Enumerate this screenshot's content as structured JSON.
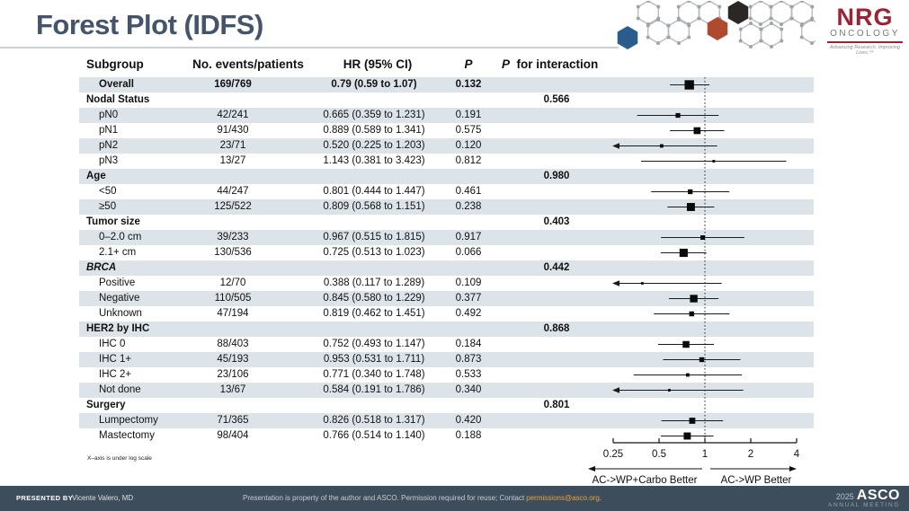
{
  "title": "Forest Plot (IDFS)",
  "nrg_logo": {
    "name": "NRG",
    "division": "ONCOLOGY",
    "tagline": "Advancing Research. Improving Lives.™",
    "brand_red": "#9d2235",
    "honeycomb_colors": {
      "blue": "#2a5d8c",
      "red": "#b04a2f",
      "dark": "#2b2724",
      "gray": "#b4b9bd"
    }
  },
  "table": {
    "columns": {
      "subgroup": "Subgroup",
      "events": "No. events/patients",
      "hr": "HR (95% CI)",
      "p": "P",
      "p_interaction_prefix": "P",
      "p_interaction_suffix": "for interaction"
    }
  },
  "chart_data": {
    "type": "forest",
    "x_scale": "log",
    "xlim": [
      0.25,
      4
    ],
    "reference_line": 1,
    "axis_ticks": [
      0.25,
      0.5,
      1,
      2,
      4
    ],
    "axis_tick_labels": [
      "0.25",
      "0.5",
      "1",
      "2",
      "4"
    ],
    "rows": [
      {
        "label": "Overall",
        "type": "data",
        "bold": true,
        "events": "169/769",
        "hr": 0.79,
        "lo": 0.59,
        "hi": 1.07,
        "hr_text": "0.79 (0.59 to 1.07)",
        "p": "0.132"
      },
      {
        "label": "Nodal Status",
        "type": "section",
        "p_interaction": "0.566"
      },
      {
        "label": "pN0",
        "type": "data",
        "events": "42/241",
        "hr": 0.665,
        "lo": 0.359,
        "hi": 1.231,
        "hr_text": "0.665 (0.359 to 1.231)",
        "p": "0.191"
      },
      {
        "label": "pN1",
        "type": "data",
        "events": "91/430",
        "hr": 0.889,
        "lo": 0.589,
        "hi": 1.341,
        "hr_text": "0.889 (0.589 to 1.341)",
        "p": "0.575"
      },
      {
        "label": "pN2",
        "type": "data",
        "events": "23/71",
        "hr": 0.52,
        "lo": 0.225,
        "hi": 1.203,
        "hr_text": "0.520 (0.225 to 1.203)",
        "p": "0.120"
      },
      {
        "label": "pN3",
        "type": "data",
        "events": "13/27",
        "hr": 1.143,
        "lo": 0.381,
        "hi": 3.423,
        "hr_text": "1.143 (0.381 to 3.423)",
        "p": "0.812"
      },
      {
        "label": "Age",
        "type": "section",
        "p_interaction": "0.980"
      },
      {
        "label": "<50",
        "type": "data",
        "events": "44/247",
        "hr": 0.801,
        "lo": 0.444,
        "hi": 1.447,
        "hr_text": "0.801 (0.444 to 1.447)",
        "p": "0.461"
      },
      {
        "label": "≥50",
        "type": "data",
        "events": "125/522",
        "hr": 0.809,
        "lo": 0.568,
        "hi": 1.151,
        "hr_text": "0.809 (0.568 to 1.151)",
        "p": "0.238"
      },
      {
        "label": "Tumor size",
        "type": "section",
        "p_interaction": "0.403"
      },
      {
        "label": "0–2.0 cm",
        "type": "data",
        "events": "39/233",
        "hr": 0.967,
        "lo": 0.515,
        "hi": 1.815,
        "hr_text": "0.967 (0.515 to 1.815)",
        "p": "0.917"
      },
      {
        "label": "2.1+ cm",
        "type": "data",
        "events": "130/536",
        "hr": 0.725,
        "lo": 0.513,
        "hi": 1.023,
        "hr_text": "0.725 (0.513 to 1.023)",
        "p": "0.066"
      },
      {
        "label": "BRCA",
        "type": "section",
        "italic": true,
        "p_interaction": "0.442"
      },
      {
        "label": "Positive",
        "type": "data",
        "events": "12/70",
        "hr": 0.388,
        "lo": 0.117,
        "hi": 1.289,
        "hr_text": "0.388 (0.117 to 1.289)",
        "p": "0.109"
      },
      {
        "label": "Negative",
        "type": "data",
        "events": "110/505",
        "hr": 0.845,
        "lo": 0.58,
        "hi": 1.229,
        "hr_text": "0.845 (0.580 to 1.229)",
        "p": "0.377"
      },
      {
        "label": "Unknown",
        "type": "data",
        "events": "47/194",
        "hr": 0.819,
        "lo": 0.462,
        "hi": 1.451,
        "hr_text": "0.819 (0.462 to 1.451)",
        "p": "0.492"
      },
      {
        "label": "HER2 by IHC",
        "type": "section",
        "p_interaction": "0.868"
      },
      {
        "label": "IHC 0",
        "type": "data",
        "events": "88/403",
        "hr": 0.752,
        "lo": 0.493,
        "hi": 1.147,
        "hr_text": "0.752 (0.493 to 1.147)",
        "p": "0.184"
      },
      {
        "label": "IHC 1+",
        "type": "data",
        "events": "45/193",
        "hr": 0.953,
        "lo": 0.531,
        "hi": 1.711,
        "hr_text": "0.953 (0.531 to 1.711)",
        "p": "0.873"
      },
      {
        "label": "IHC 2+",
        "type": "data",
        "events": "23/106",
        "hr": 0.771,
        "lo": 0.34,
        "hi": 1.748,
        "hr_text": "0.771 (0.340 to 1.748)",
        "p": "0.533"
      },
      {
        "label": "Not done",
        "type": "data",
        "events": "13/67",
        "hr": 0.584,
        "lo": 0.191,
        "hi": 1.786,
        "hr_text": "0.584 (0.191 to 1.786)",
        "p": "0.340"
      },
      {
        "label": "Surgery",
        "type": "section",
        "p_interaction": "0.801"
      },
      {
        "label": "Lumpectomy",
        "type": "data",
        "events": "71/365",
        "hr": 0.826,
        "lo": 0.518,
        "hi": 1.317,
        "hr_text": "0.826 (0.518 to 1.317)",
        "p": "0.420"
      },
      {
        "label": "Mastectomy",
        "type": "data",
        "events": "98/404",
        "hr": 0.766,
        "lo": 0.514,
        "hi": 1.14,
        "hr_text": "0.766 (0.514 to 1.140)",
        "p": "0.188"
      }
    ]
  },
  "axis": {
    "note": "X–axis is under log scale",
    "left_label": "AC->WP+Carbo Better",
    "right_label": "AC->WP Better"
  },
  "footer": {
    "presented_by_label": "PRESENTED BY",
    "presenter": "Vicente Valero, MD",
    "notice_prefix": "Presentation is property of the author and ASCO. Permission required for reuse; Contact ",
    "notice_link": "permissions@asco.org",
    "notice_suffix": ".",
    "year": "2025",
    "org": "ASCO",
    "meeting": "ANNUAL MEETING"
  },
  "colors": {
    "title": "#44546A",
    "stripe": "#dde4e9",
    "footer_bg": "#3e4d5c",
    "link_orange": "#e8a33d"
  }
}
